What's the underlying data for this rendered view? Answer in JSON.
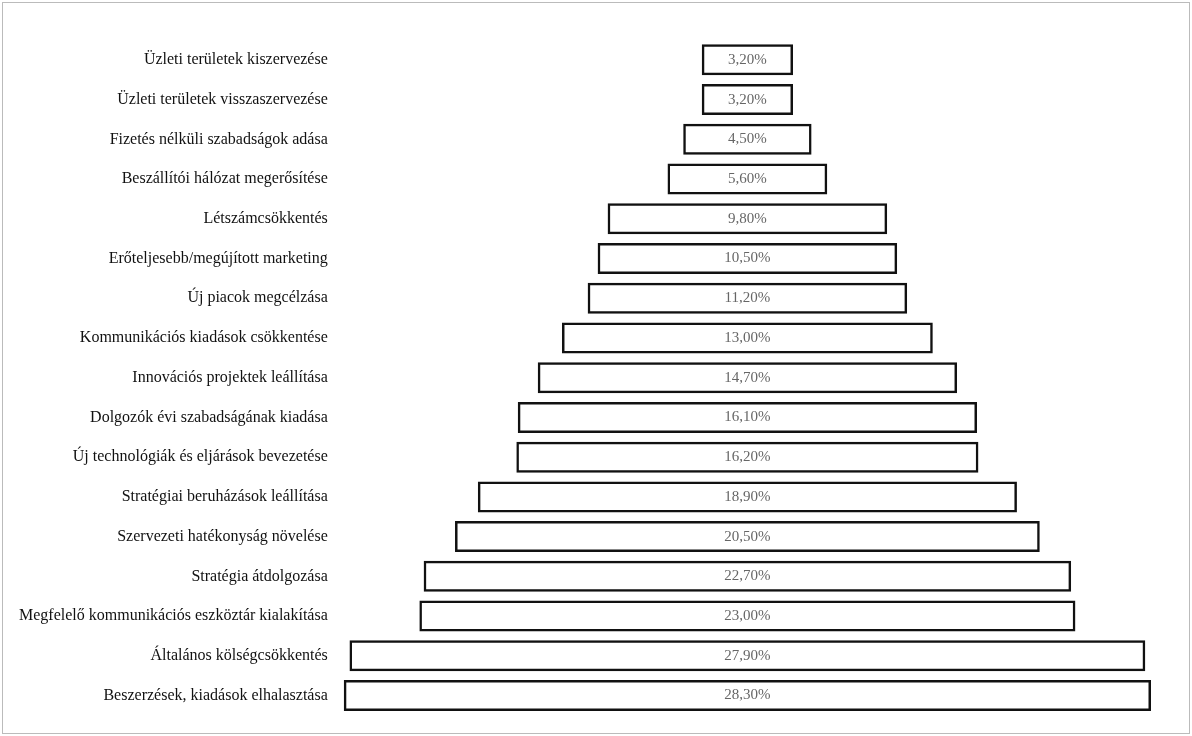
{
  "chart_data": {
    "type": "other",
    "categories": [
      "Üzleti területek kiszervezése",
      "Üzleti területek visszaszervezése",
      "Fizetés nélküli szabadságok adása",
      "Beszállítói hálózat megerősítése",
      "Létszámcsökkentés",
      "Erőteljesebb/megújított marketing",
      "Új piacok megcélzása",
      "Kommunikációs kiadások csökkentése",
      "Innovációs projektek leállítása",
      "Dolgozók évi szabadságának kiadása",
      "Új technológiák és eljárások bevezetése",
      "Stratégiai beruházások leállítása",
      "Szervezeti hatékonyság növelése",
      "Stratégia átdolgozása",
      "Megfelelő kommunikációs eszköztár kialakítása",
      "Általános kölségcsökkentés",
      "Beszerzések, kiadások elhalasztása"
    ],
    "values": [
      3.2,
      3.2,
      4.5,
      5.6,
      9.8,
      10.5,
      11.2,
      13.0,
      14.7,
      16.1,
      16.2,
      18.9,
      20.5,
      22.7,
      23.0,
      27.9,
      28.3
    ],
    "value_labels": [
      "3,20%",
      "3,20%",
      "4,50%",
      "5,60%",
      "9,80%",
      "10,50%",
      "11,20%",
      "13,00%",
      "14,70%",
      "16,10%",
      "16,20%",
      "18,90%",
      "20,50%",
      "22,70%",
      "23,00%",
      "27,90%",
      "28,30%"
    ],
    "color": "#111111"
  }
}
